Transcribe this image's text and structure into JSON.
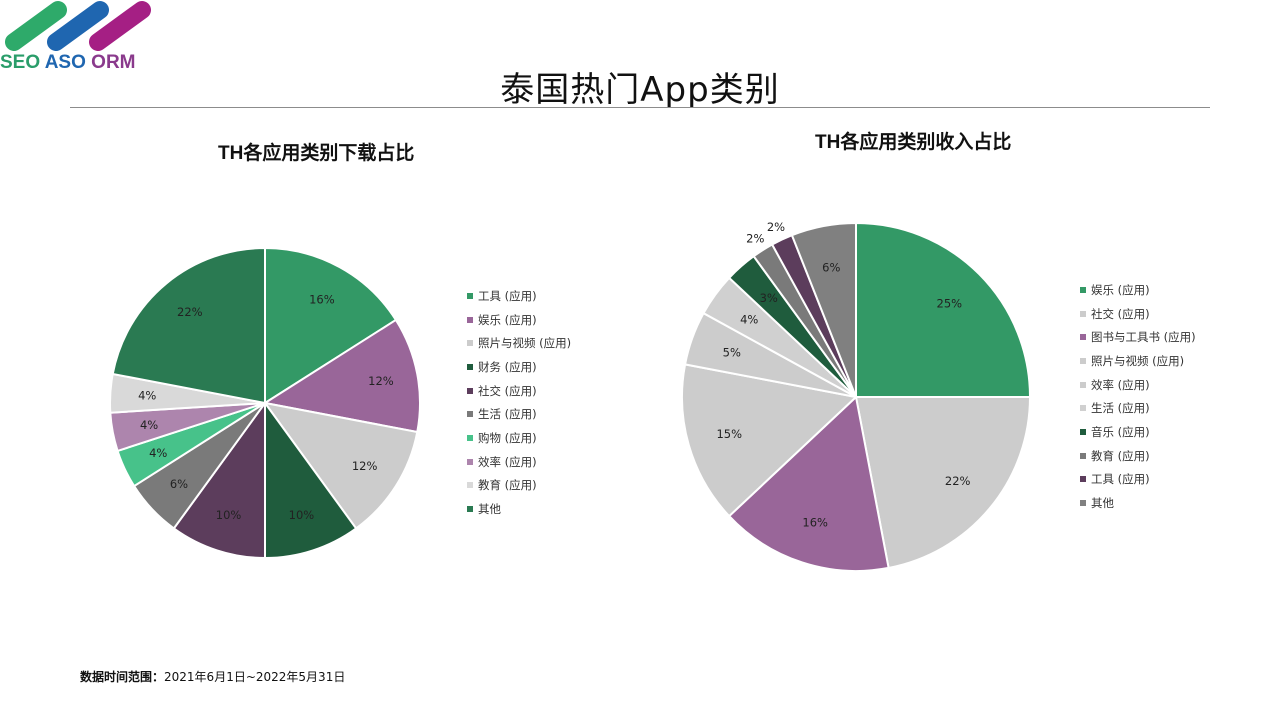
{
  "logo": {
    "text_seo": "SEO",
    "text_aso": "ASO",
    "text_orm": "ORM",
    "bar_colors": [
      "#2eaa6a",
      "#1f66b0",
      "#a51f84"
    ]
  },
  "page": {
    "title": "泰国热门App类别",
    "footnote_label": "数据时间范围：",
    "footnote_value": "2021年6月1日~2022年5月31日"
  },
  "chart_data": [
    {
      "type": "pie",
      "title": "TH各应用类别下载占比",
      "categories": [
        "工具 (应用)",
        "娱乐 (应用)",
        "照片与视频 (应用)",
        "财务 (应用)",
        "社交 (应用)",
        "生活 (应用)",
        "购物 (应用)",
        "效率 (应用)",
        "教育 (应用)",
        "其他"
      ],
      "values": [
        16,
        12,
        12,
        10,
        10,
        6,
        4,
        4,
        4,
        22
      ],
      "labels": [
        "16%",
        "12%",
        "12%",
        "10%",
        "10%",
        "6%",
        "4%",
        "4%",
        "4%",
        "22%"
      ],
      "colors": [
        "#339966",
        "#996699",
        "#cccccc",
        "#1f5c3d",
        "#5c3d5c",
        "#7a7a7a",
        "#47c28a",
        "#ad85ad",
        "#d9d9d9",
        "#2a7a52"
      ],
      "start_angle": "12 o'clock",
      "direction": "clockwise",
      "legend_position": "right"
    },
    {
      "type": "pie",
      "title": "TH各应用类别收入占比",
      "categories": [
        "娱乐 (应用)",
        "社交 (应用)",
        "图书与工具书 (应用)",
        "照片与视频 (应用)",
        "效率 (应用)",
        "生活 (应用)",
        "音乐 (应用)",
        "教育 (应用)",
        "工具 (应用)",
        "其他"
      ],
      "values": [
        25,
        22,
        16,
        15,
        5,
        4,
        3,
        2,
        2,
        6
      ],
      "labels": [
        "25%",
        "22%",
        "16%",
        "15%",
        "5%",
        "4%",
        "3%",
        "2%",
        "2%",
        "6%"
      ],
      "colors": [
        "#339966",
        "#cccccc",
        "#996699",
        "#cccccc",
        "#cccccc",
        "#d0d0d0",
        "#1f5c3d",
        "#7a7a7a",
        "#5c3d5c",
        "#808080"
      ],
      "start_angle": "12 o'clock",
      "direction": "clockwise",
      "legend_position": "right"
    }
  ]
}
